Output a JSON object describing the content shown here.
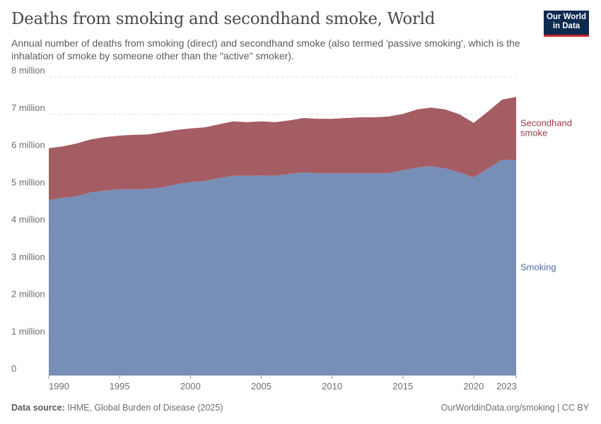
{
  "header": {
    "title": "Deaths from smoking and secondhand smoke, World",
    "subtitle": "Annual number of deaths from smoking (direct) and secondhand smoke (also termed 'passive smoking', which is the inhalation of smoke by someone other than the \"active\" smoker).",
    "logo": "Our World in Data"
  },
  "footer": {
    "source_label": "Data source:",
    "source": "IHME, Global Burden of Disease (2025)",
    "credit": "OurWorldinData.org/smoking | CC BY"
  },
  "colors": {
    "smoking": "#7088b3",
    "secondhand": "#a0545c",
    "smoking_label": "#4f6ea3",
    "secondhand_label": "#9a3a44"
  },
  "chart_data": {
    "type": "area",
    "stacked": true,
    "title": "Deaths from smoking and secondhand smoke, World",
    "xlabel": "",
    "ylabel": "",
    "xlim": [
      1990,
      2023
    ],
    "ylim": [
      0,
      8000000
    ],
    "grid": true,
    "legend": "right, inline labels",
    "y_ticks": [
      {
        "v": 0,
        "label": "0"
      },
      {
        "v": 1000000,
        "label": "1 million"
      },
      {
        "v": 2000000,
        "label": "2 million"
      },
      {
        "v": 3000000,
        "label": "3 million"
      },
      {
        "v": 4000000,
        "label": "4 million"
      },
      {
        "v": 5000000,
        "label": "5 million"
      },
      {
        "v": 6000000,
        "label": "6 million"
      },
      {
        "v": 7000000,
        "label": "7 million"
      },
      {
        "v": 8000000,
        "label": "8 million"
      }
    ],
    "x_ticks": [
      1990,
      1995,
      2000,
      2005,
      2010,
      2015,
      2020,
      2023
    ],
    "x": [
      1990,
      1991,
      1992,
      1993,
      1994,
      1995,
      1996,
      1997,
      1998,
      1999,
      2000,
      2001,
      2002,
      2003,
      2004,
      2005,
      2006,
      2007,
      2008,
      2009,
      2010,
      2011,
      2012,
      2013,
      2014,
      2015,
      2016,
      2017,
      2018,
      2019,
      2020,
      2021,
      2022,
      2023
    ],
    "series": [
      {
        "name": "Smoking",
        "values": [
          4700000,
          4760000,
          4800000,
          4910000,
          4950000,
          4990000,
          4990000,
          5000000,
          5040000,
          5120000,
          5180000,
          5210000,
          5290000,
          5350000,
          5350000,
          5360000,
          5350000,
          5400000,
          5440000,
          5420000,
          5420000,
          5420000,
          5420000,
          5420000,
          5420000,
          5500000,
          5570000,
          5610000,
          5550000,
          5440000,
          5310000,
          5540000,
          5780000,
          5780000
        ]
      },
      {
        "name": "Secondhand smoke",
        "values": [
          1390000,
          1380000,
          1420000,
          1420000,
          1440000,
          1440000,
          1460000,
          1460000,
          1480000,
          1460000,
          1440000,
          1440000,
          1440000,
          1460000,
          1440000,
          1450000,
          1440000,
          1440000,
          1460000,
          1460000,
          1460000,
          1480000,
          1500000,
          1500000,
          1520000,
          1510000,
          1560000,
          1570000,
          1580000,
          1560000,
          1460000,
          1530000,
          1610000,
          1690000
        ]
      }
    ]
  }
}
